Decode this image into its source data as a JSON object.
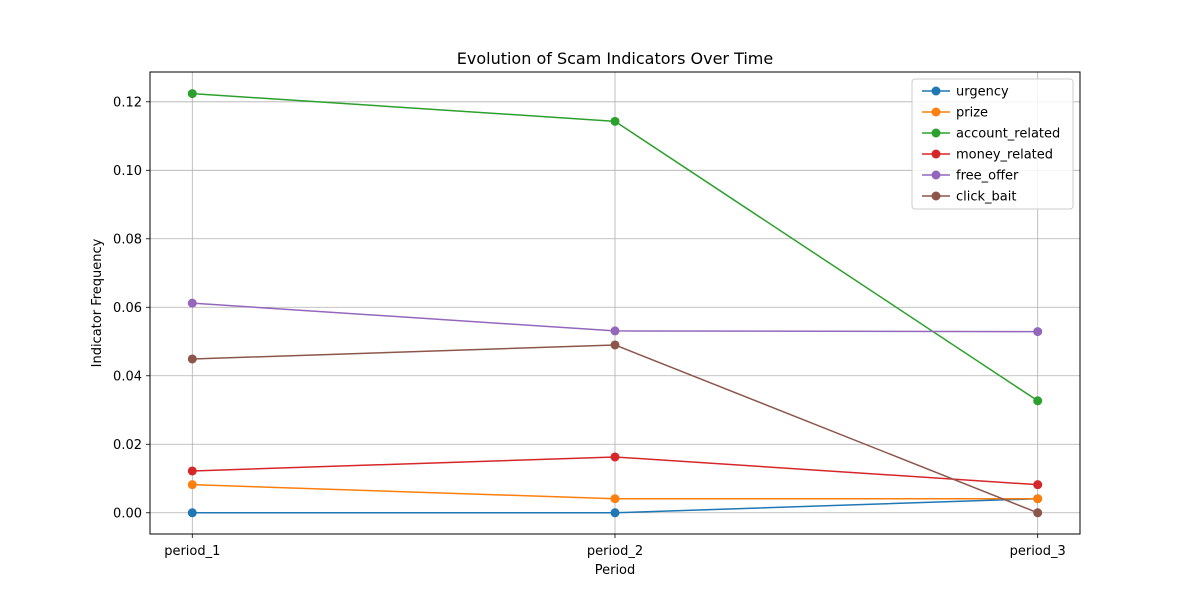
{
  "chart_data": {
    "type": "line",
    "title": "Evolution of Scam Indicators Over Time",
    "xlabel": "Period",
    "ylabel": "Indicator Frequency",
    "categories": [
      "period_1",
      "period_2",
      "period_3"
    ],
    "ylim": [
      -0.0062,
      0.1287
    ],
    "yticks": [
      0.0,
      0.02,
      0.04,
      0.06,
      0.08,
      0.1,
      0.12
    ],
    "ytick_labels": [
      "0.00",
      "0.02",
      "0.04",
      "0.06",
      "0.08",
      "0.10",
      "0.12"
    ],
    "grid": true,
    "legend_position": "top-right",
    "series": [
      {
        "name": "urgency",
        "color": "#1f77b4",
        "values": [
          0.0,
          0.0,
          0.0041
        ]
      },
      {
        "name": "prize",
        "color": "#ff7f0e",
        "values": [
          0.0082,
          0.0041,
          0.0041
        ]
      },
      {
        "name": "account_related",
        "color": "#2ca02c",
        "values": [
          0.1224,
          0.1143,
          0.0327
        ]
      },
      {
        "name": "money_related",
        "color": "#d62728",
        "values": [
          0.0122,
          0.0163,
          0.0082
        ]
      },
      {
        "name": "free_offer",
        "color": "#9467bd",
        "values": [
          0.0612,
          0.0531,
          0.0529
        ]
      },
      {
        "name": "click_bait",
        "color": "#8c564b",
        "values": [
          0.0449,
          0.049,
          0.0
        ]
      }
    ]
  }
}
